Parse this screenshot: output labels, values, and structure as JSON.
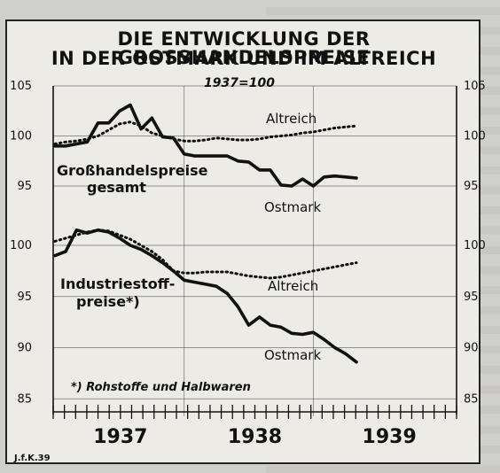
{
  "title_line1": "DIE ENTWICKLUNG DER GROSSHANDELSPREISE",
  "title_line2": "IN DER OSTMARK UND IM ALTREICH",
  "subtitle": "1937=100",
  "footnote": "*) Rohstoffe und Halbwaren",
  "credit": "J.f.K.39",
  "colors": {
    "line": "#111111",
    "paper": "#ecebe6",
    "background": "#cfcfcb"
  },
  "chart_data": [
    {
      "type": "line",
      "panel": "top",
      "label_lines": [
        "Großhandelspreise",
        "gesamt"
      ],
      "x_axis": {
        "labels": [
          "1937",
          "1938",
          "1939"
        ],
        "months_from_jan_1937": [
          0,
          28
        ]
      },
      "y_ticks": [
        "105",
        "100",
        "95"
      ],
      "ylim": [
        93,
        105.5
      ],
      "series": [
        {
          "name": "Altreich",
          "style": "dotted",
          "values": [
            99.2,
            99.4,
            99.5,
            99.7,
            100.0,
            100.6,
            101.2,
            101.4,
            101.0,
            100.3,
            100.0,
            99.7,
            99.5,
            99.5,
            99.6,
            99.8,
            99.7,
            99.6,
            99.6,
            99.7,
            99.9,
            100.0,
            100.1,
            100.3,
            100.4,
            100.6,
            100.8,
            100.9,
            101.0
          ]
        },
        {
          "name": "Ostmark",
          "style": "solid",
          "values": [
            99.0,
            99.0,
            99.2,
            99.4,
            101.3,
            101.3,
            102.5,
            103.1,
            100.7,
            101.8,
            99.9,
            99.8,
            98.2,
            98.0,
            98.0,
            98.0,
            98.0,
            97.5,
            97.4,
            96.6,
            96.6,
            95.1,
            95.0,
            95.7,
            95.0,
            95.9,
            96.0,
            95.9,
            95.8
          ]
        }
      ]
    },
    {
      "type": "line",
      "panel": "bottom",
      "label_lines": [
        "Industriestoff-",
        "preise*)"
      ],
      "x_axis": {
        "labels": [
          "1937",
          "1938",
          "1939"
        ],
        "months_from_jan_1937": [
          0,
          28
        ]
      },
      "y_ticks": [
        "100",
        "95",
        "90",
        "85"
      ],
      "ylim": [
        84.5,
        102.3
      ],
      "series": [
        {
          "name": "Altreich",
          "style": "dotted",
          "values": [
            100.4,
            100.7,
            101.0,
            101.3,
            101.5,
            101.4,
            101.0,
            100.6,
            100.0,
            99.4,
            98.6,
            97.5,
            97.3,
            97.3,
            97.4,
            97.4,
            97.4,
            97.2,
            97.0,
            96.9,
            96.8,
            96.9,
            97.1,
            97.3,
            97.5,
            97.7,
            97.9,
            98.1,
            98.3
          ]
        },
        {
          "name": "Ostmark",
          "style": "solid",
          "values": [
            99.0,
            99.4,
            101.5,
            101.2,
            101.5,
            101.3,
            100.7,
            100.0,
            99.6,
            99.0,
            98.3,
            97.5,
            96.6,
            96.4,
            96.2,
            96.0,
            95.3,
            94.0,
            92.2,
            93.0,
            92.2,
            92.0,
            91.4,
            91.3,
            91.5,
            90.8,
            90.0,
            89.4,
            88.6
          ]
        }
      ]
    }
  ]
}
